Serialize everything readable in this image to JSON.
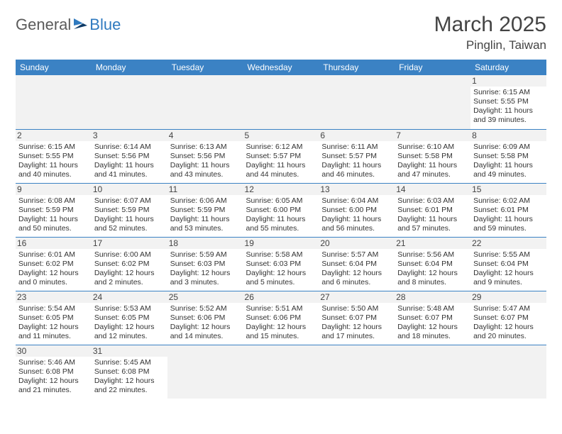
{
  "brand": {
    "general": "General",
    "blue": "Blue"
  },
  "title": "March 2025",
  "location": "Pinglin, Taiwan",
  "colors": {
    "header_bg": "#3b82c4",
    "header_text": "#ffffff",
    "cell_border": "#3b82c4",
    "daynum_bg": "#f2f2f2",
    "body_text": "#333333",
    "logo_gray": "#5a5a5a",
    "logo_blue": "#2f7abf"
  },
  "weekdays": [
    "Sunday",
    "Monday",
    "Tuesday",
    "Wednesday",
    "Thursday",
    "Friday",
    "Saturday"
  ],
  "days": [
    {
      "n": 1,
      "sr": "6:15 AM",
      "ss": "5:55 PM",
      "dl": "11 hours and 39 minutes."
    },
    {
      "n": 2,
      "sr": "6:15 AM",
      "ss": "5:55 PM",
      "dl": "11 hours and 40 minutes."
    },
    {
      "n": 3,
      "sr": "6:14 AM",
      "ss": "5:56 PM",
      "dl": "11 hours and 41 minutes."
    },
    {
      "n": 4,
      "sr": "6:13 AM",
      "ss": "5:56 PM",
      "dl": "11 hours and 43 minutes."
    },
    {
      "n": 5,
      "sr": "6:12 AM",
      "ss": "5:57 PM",
      "dl": "11 hours and 44 minutes."
    },
    {
      "n": 6,
      "sr": "6:11 AM",
      "ss": "5:57 PM",
      "dl": "11 hours and 46 minutes."
    },
    {
      "n": 7,
      "sr": "6:10 AM",
      "ss": "5:58 PM",
      "dl": "11 hours and 47 minutes."
    },
    {
      "n": 8,
      "sr": "6:09 AM",
      "ss": "5:58 PM",
      "dl": "11 hours and 49 minutes."
    },
    {
      "n": 9,
      "sr": "6:08 AM",
      "ss": "5:59 PM",
      "dl": "11 hours and 50 minutes."
    },
    {
      "n": 10,
      "sr": "6:07 AM",
      "ss": "5:59 PM",
      "dl": "11 hours and 52 minutes."
    },
    {
      "n": 11,
      "sr": "6:06 AM",
      "ss": "5:59 PM",
      "dl": "11 hours and 53 minutes."
    },
    {
      "n": 12,
      "sr": "6:05 AM",
      "ss": "6:00 PM",
      "dl": "11 hours and 55 minutes."
    },
    {
      "n": 13,
      "sr": "6:04 AM",
      "ss": "6:00 PM",
      "dl": "11 hours and 56 minutes."
    },
    {
      "n": 14,
      "sr": "6:03 AM",
      "ss": "6:01 PM",
      "dl": "11 hours and 57 minutes."
    },
    {
      "n": 15,
      "sr": "6:02 AM",
      "ss": "6:01 PM",
      "dl": "11 hours and 59 minutes."
    },
    {
      "n": 16,
      "sr": "6:01 AM",
      "ss": "6:02 PM",
      "dl": "12 hours and 0 minutes."
    },
    {
      "n": 17,
      "sr": "6:00 AM",
      "ss": "6:02 PM",
      "dl": "12 hours and 2 minutes."
    },
    {
      "n": 18,
      "sr": "5:59 AM",
      "ss": "6:03 PM",
      "dl": "12 hours and 3 minutes."
    },
    {
      "n": 19,
      "sr": "5:58 AM",
      "ss": "6:03 PM",
      "dl": "12 hours and 5 minutes."
    },
    {
      "n": 20,
      "sr": "5:57 AM",
      "ss": "6:04 PM",
      "dl": "12 hours and 6 minutes."
    },
    {
      "n": 21,
      "sr": "5:56 AM",
      "ss": "6:04 PM",
      "dl": "12 hours and 8 minutes."
    },
    {
      "n": 22,
      "sr": "5:55 AM",
      "ss": "6:04 PM",
      "dl": "12 hours and 9 minutes."
    },
    {
      "n": 23,
      "sr": "5:54 AM",
      "ss": "6:05 PM",
      "dl": "12 hours and 11 minutes."
    },
    {
      "n": 24,
      "sr": "5:53 AM",
      "ss": "6:05 PM",
      "dl": "12 hours and 12 minutes."
    },
    {
      "n": 25,
      "sr": "5:52 AM",
      "ss": "6:06 PM",
      "dl": "12 hours and 14 minutes."
    },
    {
      "n": 26,
      "sr": "5:51 AM",
      "ss": "6:06 PM",
      "dl": "12 hours and 15 minutes."
    },
    {
      "n": 27,
      "sr": "5:50 AM",
      "ss": "6:07 PM",
      "dl": "12 hours and 17 minutes."
    },
    {
      "n": 28,
      "sr": "5:48 AM",
      "ss": "6:07 PM",
      "dl": "12 hours and 18 minutes."
    },
    {
      "n": 29,
      "sr": "5:47 AM",
      "ss": "6:07 PM",
      "dl": "12 hours and 20 minutes."
    },
    {
      "n": 30,
      "sr": "5:46 AM",
      "ss": "6:08 PM",
      "dl": "12 hours and 21 minutes."
    },
    {
      "n": 31,
      "sr": "5:45 AM",
      "ss": "6:08 PM",
      "dl": "12 hours and 22 minutes."
    }
  ],
  "labels": {
    "sunrise": "Sunrise:",
    "sunset": "Sunset:",
    "daylight": "Daylight:"
  },
  "first_weekday_index": 6
}
